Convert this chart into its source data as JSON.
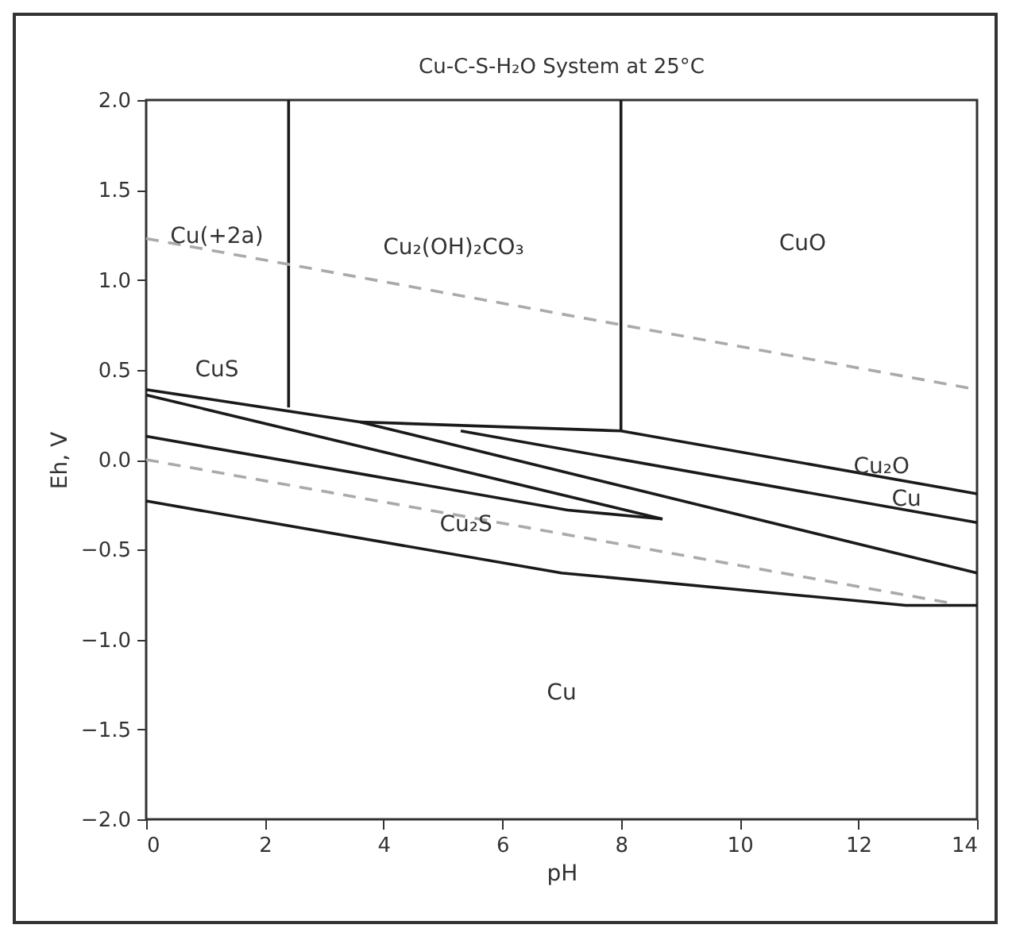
{
  "chart_data": {
    "type": "line",
    "title": "Cu-C-S-H₂O System at 25°C",
    "xlabel": "pH",
    "ylabel": "Eh, V",
    "xlim": [
      0,
      14
    ],
    "xticks": [
      0,
      2,
      4,
      6,
      8,
      10,
      12,
      14
    ],
    "ylim": [
      -2,
      2
    ],
    "yticks": [
      {
        "value": -2,
        "label": "−2.0"
      },
      {
        "value": -1.5,
        "label": "−1.5"
      },
      {
        "value": -1,
        "label": "−1.0"
      },
      {
        "value": -0.5,
        "label": "−0.5"
      },
      {
        "value": 0,
        "label": "0.0"
      },
      {
        "value": 0.5,
        "label": "0.5"
      },
      {
        "value": 1,
        "label": "1.0"
      },
      {
        "value": 1.5,
        "label": "1.5"
      },
      {
        "value": 2,
        "label": "2.0"
      }
    ],
    "grid": false,
    "marker": "none",
    "series": [
      {
        "color": "#1a1a1a",
        "line_style": "solid",
        "x": [
          0,
          3.6,
          14
        ],
        "values": [
          0.39,
          0.21,
          -0.63
        ]
      },
      {
        "color": "#1a1a1a",
        "line_style": "solid",
        "x": [
          0,
          8.7
        ],
        "values": [
          0.36,
          -0.33
        ]
      },
      {
        "color": "#1a1a1a",
        "line_style": "solid",
        "x": [
          0,
          7.1,
          8.7
        ],
        "values": [
          0.13,
          -0.28,
          -0.33
        ]
      },
      {
        "color": "#1a1a1a",
        "line_style": "solid",
        "x": [
          0,
          7,
          12.8,
          14
        ],
        "values": [
          -0.23,
          -0.63,
          -0.81,
          -0.81
        ]
      },
      {
        "color": "#1a1a1a",
        "line_style": "solid",
        "x": [
          3.6,
          8,
          14
        ],
        "values": [
          0.21,
          0.16,
          -0.19
        ]
      },
      {
        "color": "#1a1a1a",
        "line_style": "solid",
        "x": [
          5.3,
          14
        ],
        "values": [
          0.16,
          -0.35
        ]
      },
      {
        "color": "#1a1a1a",
        "line_style": "solid",
        "x": [
          2.4,
          2.4
        ],
        "values": [
          0.29,
          2
        ]
      },
      {
        "color": "#1a1a1a",
        "line_style": "solid",
        "x": [
          8,
          8
        ],
        "values": [
          0.16,
          2
        ]
      },
      {
        "color": "#aaaaaa",
        "line_style": "dashed",
        "x": [
          0,
          14
        ],
        "values": [
          1.23,
          0.39
        ]
      },
      {
        "color": "#aaaaaa",
        "line_style": "dashed",
        "x": [
          0,
          13.6
        ],
        "values": [
          0,
          -0.8
        ]
      }
    ],
    "annotations": [
      "Cu(+2a)",
      "Cu₂(OH)₂CO₃",
      "CuO",
      "CuS",
      "Cu₂S",
      "Cu₂O",
      "Cu",
      "Cu"
    ]
  }
}
